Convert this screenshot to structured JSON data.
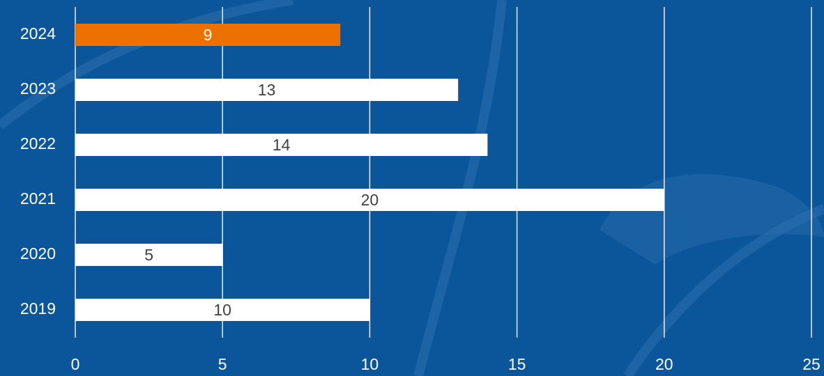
{
  "chart_data": {
    "type": "bar",
    "orientation": "horizontal",
    "categories": [
      "2024",
      "2023",
      "2022",
      "2021",
      "2020",
      "2019"
    ],
    "values": [
      9,
      13,
      14,
      20,
      5,
      10
    ],
    "colors": [
      "#ed7100",
      "#ffffff",
      "#ffffff",
      "#ffffff",
      "#ffffff",
      "#ffffff"
    ],
    "xlim": [
      0,
      25
    ],
    "xticks": [
      0,
      5,
      10,
      15,
      20,
      25
    ],
    "grid": true
  }
}
